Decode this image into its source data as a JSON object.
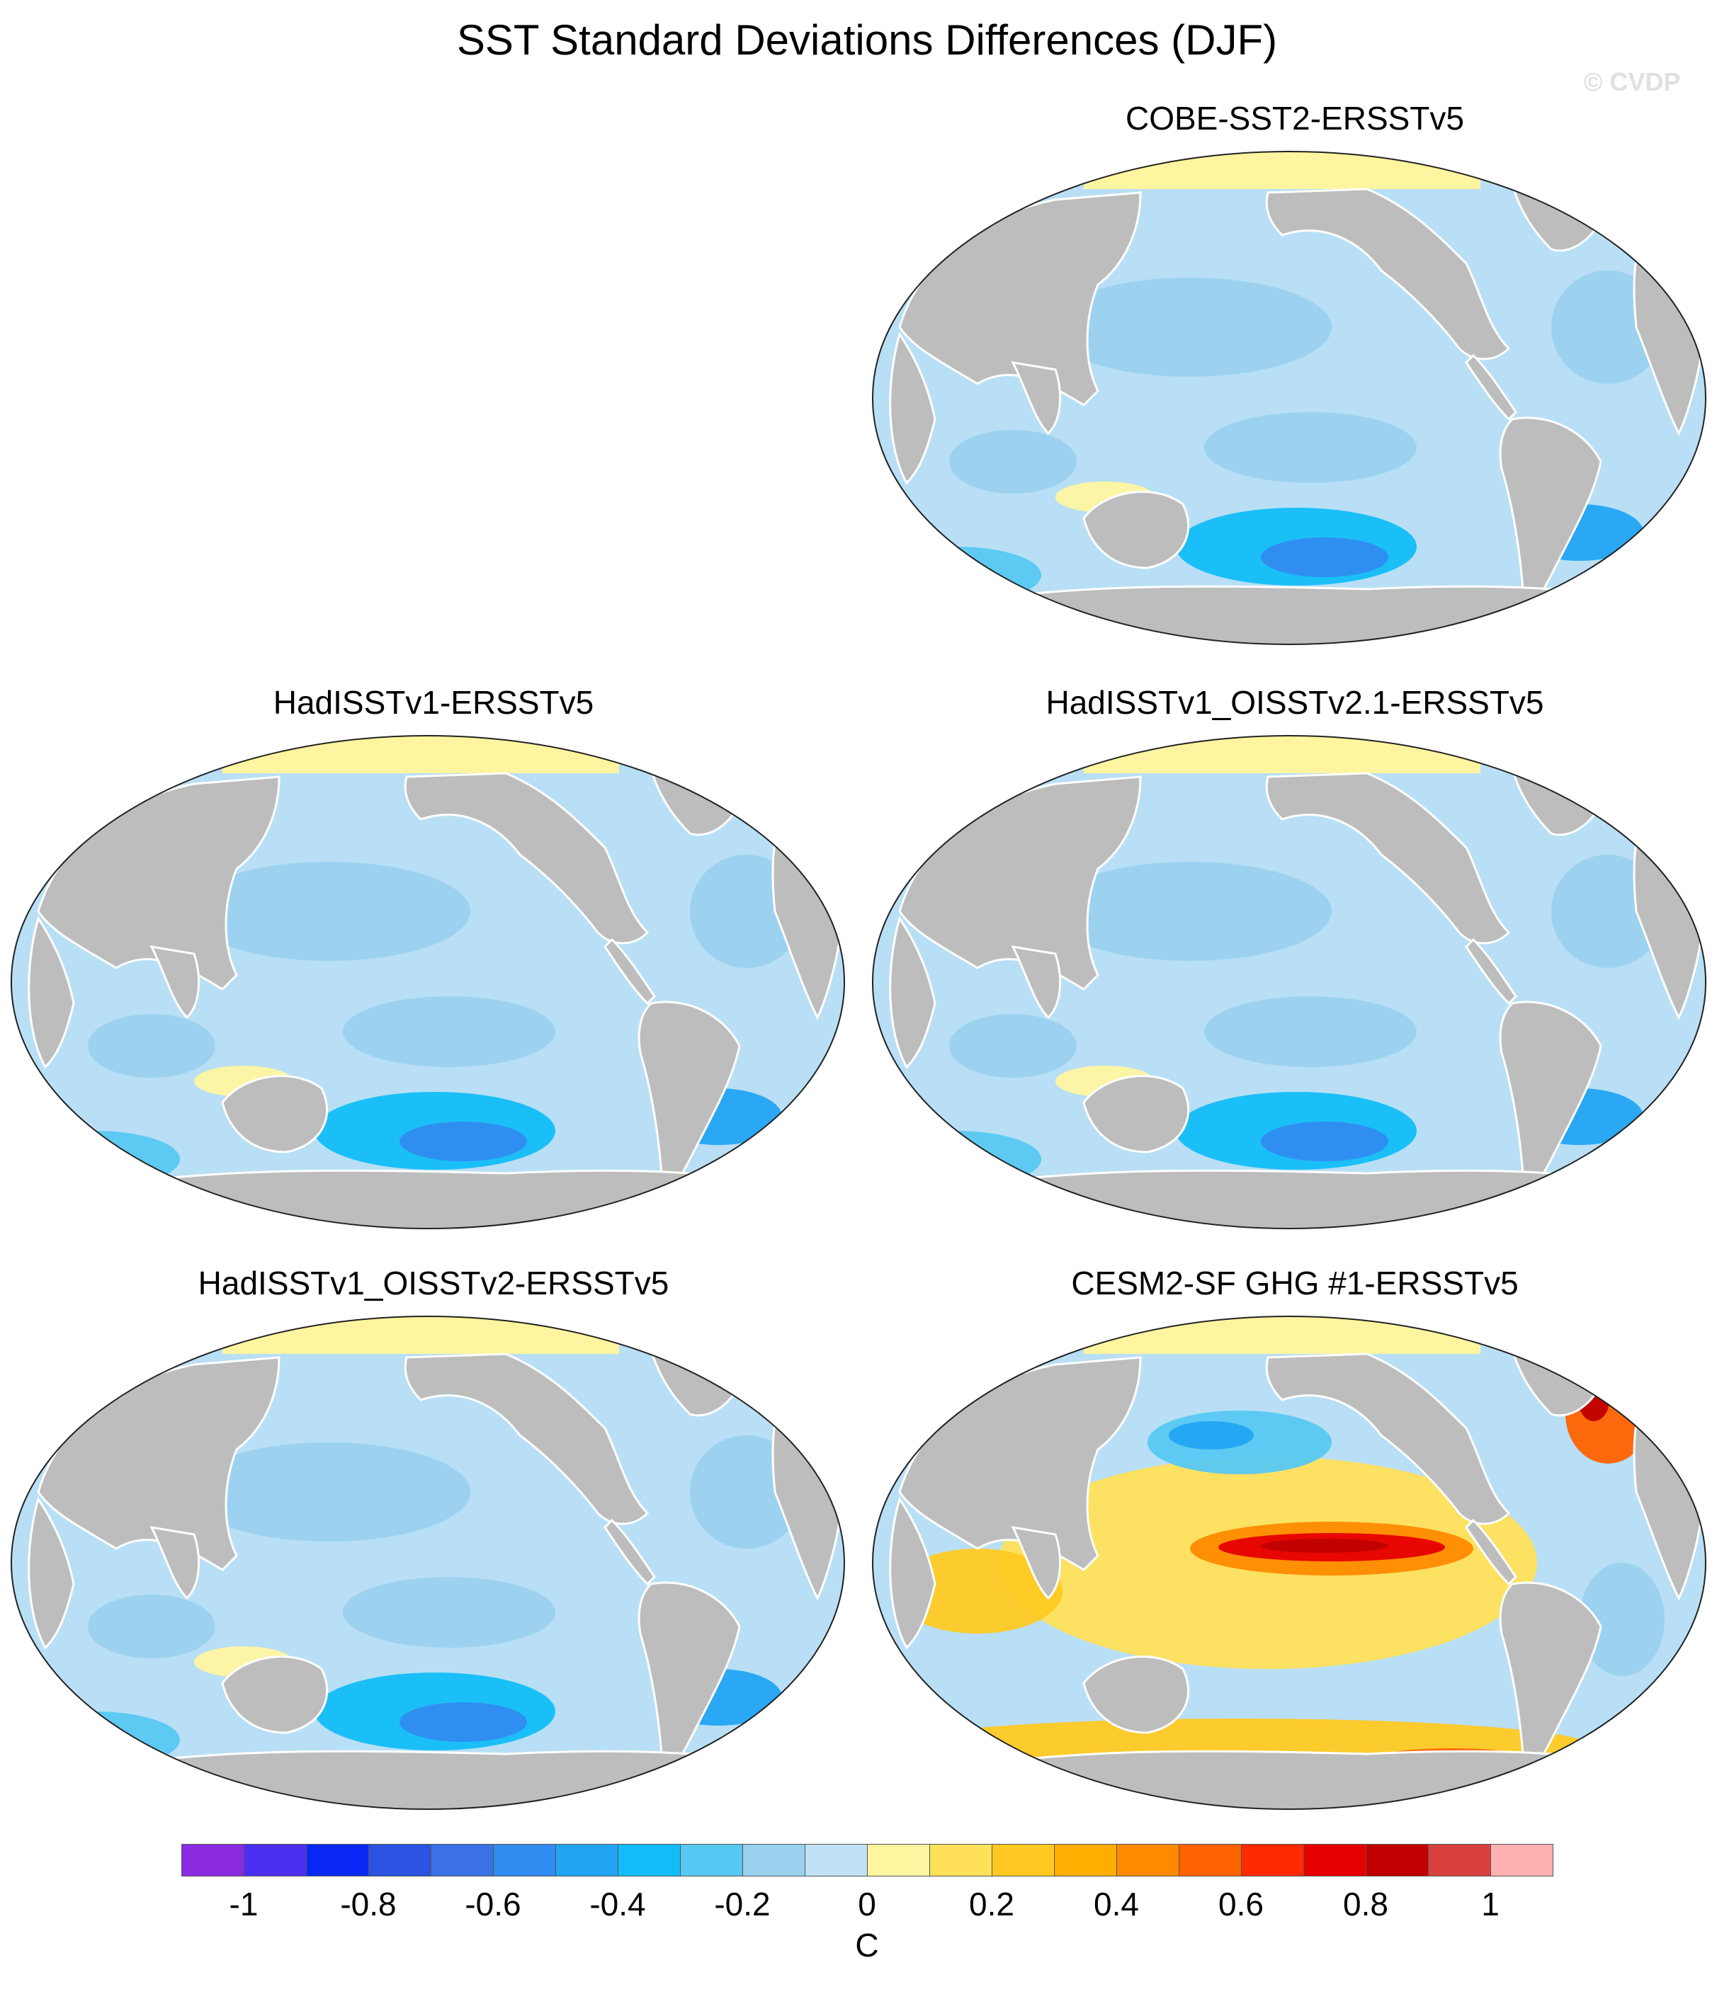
{
  "title": "SST Standard Deviations Differences (DJF)",
  "watermark": "© CVDP",
  "colors": {
    "land": "#bdbdbd",
    "ocean_base": "#b8dff5",
    "sea_ice": "#fff5a0"
  },
  "panels": [
    {
      "title": "COBE-SST2-ERSSTv5",
      "pattern": "negative"
    },
    {
      "title": "HadISSTv1-ERSSTv5",
      "pattern": "negative"
    },
    {
      "title": "HadISSTv1_OISSTv2.1-ERSSTv5",
      "pattern": "negative"
    },
    {
      "title": "HadISSTv1_OISSTv2-ERSSTv5",
      "pattern": "negative"
    },
    {
      "title": "CESM2-SF GHG #1-ERSSTv5",
      "pattern": "positive"
    }
  ],
  "colorbar": {
    "unit": "C",
    "colors": [
      "#8a2be2",
      "#4b2ff0",
      "#0a28f5",
      "#2b52e0",
      "#3a72e6",
      "#2f8cf0",
      "#22a4f2",
      "#12bdf7",
      "#56c8f2",
      "#9ad1ef",
      "#bfe2f5",
      "#fff5a0",
      "#ffe05a",
      "#ffc922",
      "#ffad00",
      "#ff8a00",
      "#ff6200",
      "#ff2a00",
      "#e60000",
      "#c00000",
      "#d84040",
      "#ffb0b0"
    ],
    "tick_labels": [
      "-1",
      "-0.8",
      "-0.6",
      "-0.4",
      "-0.2",
      "0",
      "0.2",
      "0.4",
      "0.6",
      "0.8",
      "1"
    ]
  }
}
